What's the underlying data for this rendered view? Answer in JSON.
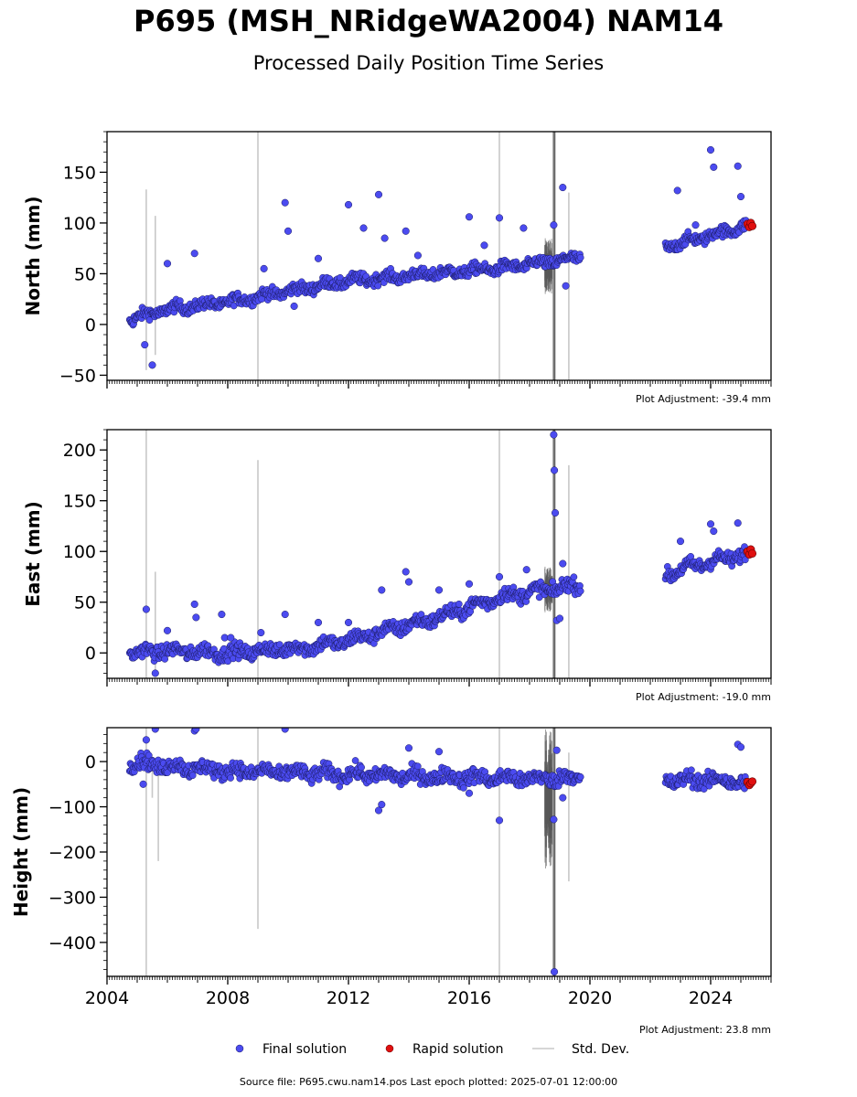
{
  "header": {
    "title": "P695 (MSH_NRidgeWA2004) NAM14",
    "subtitle": "Processed Daily Position Time Series"
  },
  "footer": {
    "source": "Source file: P695.cwu.nam14.pos  Last epoch plotted: 2025-07-01 12:00:00"
  },
  "legend": {
    "position": "bottom-center",
    "items": [
      {
        "label": "Final solution",
        "color": "#4b4bf0",
        "kind": "marker"
      },
      {
        "label": "Rapid solution",
        "color": "#e01010",
        "kind": "marker"
      },
      {
        "label": "Std. Dev.",
        "color": "#c8c8c8",
        "kind": "line"
      }
    ]
  },
  "chart_data": [
    {
      "type": "scatter",
      "ylabel": "North (mm)",
      "adjustment": "Plot Adjustment: -39.4 mm",
      "xlim": [
        2004.0,
        2026.0
      ],
      "ylim": [
        -55,
        190
      ],
      "yticks": [
        -50,
        0,
        50,
        100,
        150
      ],
      "ytick_labels": [
        "−50",
        "0",
        "50",
        "100",
        "150"
      ],
      "xticks": [
        2004,
        2008,
        2012,
        2016,
        2020,
        2024
      ],
      "show_xtick_labels": false,
      "grid": false,
      "trend": [
        [
          2004.75,
          5
        ],
        [
          2006.0,
          15
        ],
        [
          2008.0,
          22
        ],
        [
          2010.0,
          33
        ],
        [
          2012.0,
          43
        ],
        [
          2014.0,
          48
        ],
        [
          2016.0,
          53
        ],
        [
          2017.5,
          57
        ],
        [
          2019.0,
          63
        ],
        [
          2019.6,
          66
        ],
        [
          2022.6,
          77
        ],
        [
          2024.0,
          88
        ],
        [
          2025.3,
          98
        ]
      ],
      "scatter_amp": 4,
      "outliers": [
        [
          2005.25,
          -20
        ],
        [
          2005.5,
          -40
        ],
        [
          2006.0,
          60
        ],
        [
          2006.9,
          70
        ],
        [
          2009.2,
          55
        ],
        [
          2009.9,
          120
        ],
        [
          2010.0,
          92
        ],
        [
          2010.2,
          18
        ],
        [
          2011.0,
          65
        ],
        [
          2012.0,
          118
        ],
        [
          2012.5,
          95
        ],
        [
          2013.0,
          128
        ],
        [
          2013.2,
          85
        ],
        [
          2013.9,
          92
        ],
        [
          2014.3,
          68
        ],
        [
          2016.0,
          106
        ],
        [
          2016.5,
          78
        ],
        [
          2017.0,
          105
        ],
        [
          2017.8,
          95
        ],
        [
          2018.8,
          98
        ],
        [
          2019.1,
          135
        ],
        [
          2019.2,
          38
        ],
        [
          2022.9,
          132
        ],
        [
          2023.5,
          98
        ],
        [
          2024.0,
          172
        ],
        [
          2024.1,
          155
        ],
        [
          2024.9,
          156
        ],
        [
          2025.0,
          126
        ]
      ],
      "gaps": [
        [
          2019.7,
          2022.5
        ]
      ],
      "rapid": [
        [
          2025.22,
          99
        ],
        [
          2025.28,
          96
        ],
        [
          2025.33,
          100
        ],
        [
          2025.38,
          97
        ]
      ],
      "stddev": [
        [
          2005.3,
          -45,
          133
        ],
        [
          2005.6,
          -30,
          107
        ],
        [
          2009.0,
          -55,
          190
        ],
        [
          2017.0,
          -55,
          190
        ],
        [
          2018.8,
          -55,
          190
        ],
        [
          2018.85,
          -55,
          190
        ],
        [
          2019.3,
          -55,
          130
        ]
      ],
      "dense_std": [
        [
          2018.5,
          2018.75,
          30,
          85
        ]
      ]
    },
    {
      "type": "scatter",
      "ylabel": "East (mm)",
      "adjustment": "Plot Adjustment: -19.0 mm",
      "xlim": [
        2004.0,
        2026.0
      ],
      "ylim": [
        -25,
        220
      ],
      "yticks": [
        0,
        50,
        100,
        150,
        200
      ],
      "ytick_labels": [
        "0",
        "50",
        "100",
        "150",
        "200"
      ],
      "xticks": [
        2004,
        2008,
        2012,
        2016,
        2020,
        2024
      ],
      "show_xtick_labels": false,
      "grid": false,
      "trend": [
        [
          2004.75,
          0
        ],
        [
          2006.0,
          2
        ],
        [
          2008.0,
          0
        ],
        [
          2009.5,
          3
        ],
        [
          2010.5,
          5
        ],
        [
          2012.0,
          12
        ],
        [
          2013.0,
          20
        ],
        [
          2014.0,
          28
        ],
        [
          2015.0,
          35
        ],
        [
          2016.0,
          45
        ],
        [
          2017.0,
          55
        ],
        [
          2018.0,
          60
        ],
        [
          2019.0,
          64
        ],
        [
          2019.6,
          67
        ],
        [
          2022.6,
          78
        ],
        [
          2023.3,
          85
        ],
        [
          2024.0,
          90
        ],
        [
          2025.3,
          98
        ]
      ],
      "scatter_amp": 5,
      "outliers": [
        [
          2005.3,
          43
        ],
        [
          2005.6,
          -20
        ],
        [
          2006.0,
          22
        ],
        [
          2006.9,
          48
        ],
        [
          2006.95,
          35
        ],
        [
          2007.8,
          38
        ],
        [
          2007.9,
          15
        ],
        [
          2008.1,
          15
        ],
        [
          2009.1,
          20
        ],
        [
          2009.9,
          38
        ],
        [
          2011.0,
          30
        ],
        [
          2012.0,
          30
        ],
        [
          2013.1,
          62
        ],
        [
          2013.9,
          80
        ],
        [
          2014.0,
          70
        ],
        [
          2015.0,
          62
        ],
        [
          2016.0,
          68
        ],
        [
          2017.0,
          75
        ],
        [
          2017.9,
          82
        ],
        [
          2018.8,
          215
        ],
        [
          2018.82,
          180
        ],
        [
          2018.85,
          138
        ],
        [
          2018.9,
          32
        ],
        [
          2019.0,
          34
        ],
        [
          2019.1,
          88
        ],
        [
          2023.0,
          110
        ],
        [
          2024.0,
          127
        ],
        [
          2024.1,
          120
        ],
        [
          2024.9,
          128
        ]
      ],
      "gaps": [
        [
          2019.7,
          2022.5
        ]
      ],
      "rapid": [
        [
          2025.22,
          100
        ],
        [
          2025.28,
          97
        ],
        [
          2025.33,
          102
        ],
        [
          2025.38,
          98
        ]
      ],
      "stddev": [
        [
          2005.3,
          -25,
          220
        ],
        [
          2005.6,
          -20,
          80
        ],
        [
          2009.0,
          -25,
          190
        ],
        [
          2017.0,
          -25,
          220
        ],
        [
          2018.8,
          -25,
          220
        ],
        [
          2018.85,
          -25,
          220
        ],
        [
          2019.3,
          -25,
          185
        ]
      ],
      "dense_std": [
        [
          2018.5,
          2018.75,
          40,
          85
        ]
      ]
    },
    {
      "type": "scatter",
      "ylabel": "Height (mm)",
      "adjustment": "Plot Adjustment: 23.8 mm",
      "xlim": [
        2004.0,
        2026.0
      ],
      "ylim": [
        -475,
        75
      ],
      "yticks": [
        -400,
        -300,
        -200,
        -100,
        0
      ],
      "ytick_labels": [
        "−400",
        "−300",
        "−200",
        "−100",
        "0"
      ],
      "xticks": [
        2004,
        2008,
        2012,
        2016,
        2020,
        2024
      ],
      "xtick_labels": [
        "2004",
        "2008",
        "2012",
        "2016",
        "2020",
        "2024"
      ],
      "show_xtick_labels": true,
      "grid": false,
      "trend": [
        [
          2004.75,
          0
        ],
        [
          2006.0,
          -10
        ],
        [
          2008.0,
          -20
        ],
        [
          2010.0,
          -25
        ],
        [
          2012.0,
          -28
        ],
        [
          2014.0,
          -32
        ],
        [
          2016.0,
          -35
        ],
        [
          2018.0,
          -38
        ],
        [
          2019.6,
          -35
        ],
        [
          2022.6,
          -42
        ],
        [
          2024.0,
          -40
        ],
        [
          2025.3,
          -48
        ]
      ],
      "scatter_amp": 12,
      "outliers": [
        [
          2005.3,
          48
        ],
        [
          2005.2,
          -50
        ],
        [
          2005.6,
          72
        ],
        [
          2006.9,
          68
        ],
        [
          2006.95,
          72
        ],
        [
          2009.9,
          72
        ],
        [
          2013.0,
          -108
        ],
        [
          2013.1,
          -95
        ],
        [
          2014.0,
          30
        ],
        [
          2015.0,
          22
        ],
        [
          2016.0,
          -70
        ],
        [
          2017.0,
          -130
        ],
        [
          2018.8,
          -128
        ],
        [
          2018.82,
          -465
        ],
        [
          2018.9,
          25
        ],
        [
          2019.1,
          -80
        ],
        [
          2024.9,
          38
        ],
        [
          2025.0,
          32
        ]
      ],
      "gaps": [
        [
          2019.7,
          2022.5
        ]
      ],
      "rapid": [
        [
          2025.22,
          -45
        ],
        [
          2025.28,
          -52
        ],
        [
          2025.33,
          -48
        ],
        [
          2025.38,
          -44
        ]
      ],
      "stddev": [
        [
          2005.3,
          -475,
          75
        ],
        [
          2005.5,
          -80,
          -20
        ],
        [
          2005.7,
          -220,
          10
        ],
        [
          2009.0,
          -370,
          75
        ],
        [
          2017.0,
          -475,
          75
        ],
        [
          2018.8,
          -475,
          75
        ],
        [
          2018.85,
          -475,
          75
        ],
        [
          2019.3,
          -265,
          20
        ]
      ],
      "dense_std": [
        [
          2018.5,
          2018.75,
          -240,
          75
        ]
      ]
    }
  ]
}
